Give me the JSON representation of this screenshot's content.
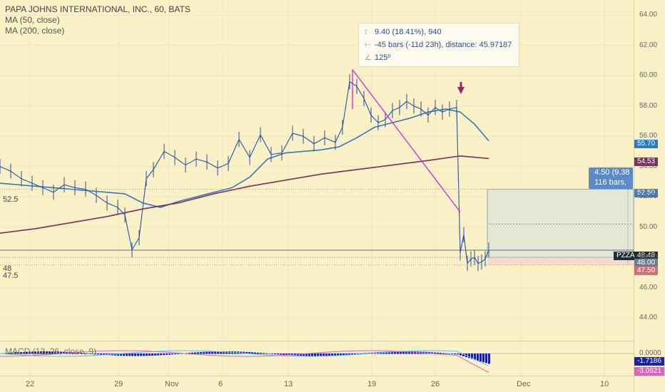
{
  "header": {
    "title": "PAPA JOHNS INTERNATIONAL, INC., 60, BATS",
    "ma50": "MA (50, close)",
    "ma200": "MA (200, close)",
    "macd": "MACD (12, 26, close, 9)"
  },
  "tooltip": {
    "price_range": "9.40 (18.41%), 940",
    "bars": "-45 bars (-11d 23h), distance: 45.97187",
    "angle": "125º"
  },
  "position_label": {
    "line1": "4.50 (9.38",
    "line2": "116 bars,"
  },
  "price_tags": {
    "ma50": "55.70",
    "ma200": "54.53",
    "target": "52.50",
    "symbol": "PZZA",
    "last": "48.48",
    "entry": "48.00",
    "stop": "47.50",
    "macd_zero": "0.0000",
    "macd_line": "-1.7186",
    "macd_hist": "-3.0621"
  },
  "left_labels": [
    "52.5",
    "48",
    "47.5"
  ],
  "colors": {
    "background": "#fbf1c7",
    "ma50": "#2e7bbf",
    "ma200": "#7b2d5c",
    "trendline": "#d426d4",
    "position_box": "#dfe5d6",
    "macd_hist": "#1a22a6",
    "arrow": "#9a2464"
  },
  "chart_data": {
    "type": "line",
    "title": "PAPA JOHNS INTERNATIONAL, INC., 60, BATS",
    "x_ticks": [
      "22",
      "29",
      "Nov",
      "6",
      "13",
      "19",
      "26",
      "Dec",
      "10"
    ],
    "y_ticks": [
      "44.00",
      "46.00",
      "48.00",
      "50.00",
      "52.00",
      "54.00",
      "56.00",
      "58.00",
      "60.00",
      "62.00",
      "64.00"
    ],
    "ylim": [
      42.5,
      65
    ],
    "macd_ticks": [
      "0.0000",
      "-1.7186",
      "-3.0621"
    ],
    "grid": true,
    "series": [
      {
        "name": "MA (50, close)",
        "x": [
          0,
          25,
          50,
          75,
          100,
          125,
          150,
          175,
          200,
          225,
          250,
          275,
          300,
          325,
          350,
          375,
          400,
          425,
          450,
          475,
          500,
          525,
          550,
          575,
          600,
          625,
          645,
          665,
          685
        ],
        "values": [
          52.9,
          52.8,
          52.7,
          52.6,
          52.5,
          52.4,
          52.3,
          52.2,
          51.6,
          51.3,
          51.7,
          52.0,
          52.3,
          52.6,
          53.3,
          54.5,
          54.9,
          55.0,
          55.1,
          55.3,
          55.9,
          56.6,
          56.9,
          57.2,
          57.6,
          57.8,
          57.6,
          56.8,
          55.7
        ]
      },
      {
        "name": "MA (200, close)",
        "x": [
          0,
          50,
          100,
          150,
          200,
          250,
          300,
          350,
          400,
          450,
          500,
          550,
          600,
          645,
          685
        ],
        "values": [
          49.6,
          49.9,
          50.3,
          50.7,
          51.2,
          51.6,
          52.2,
          52.7,
          53.1,
          53.5,
          53.8,
          54.1,
          54.4,
          54.7,
          54.53
        ]
      },
      {
        "name": "Close",
        "x": [
          0,
          15,
          30,
          45,
          60,
          75,
          90,
          105,
          120,
          135,
          150,
          165,
          175,
          185,
          195,
          205,
          215,
          230,
          245,
          260,
          275,
          290,
          305,
          320,
          335,
          350,
          365,
          380,
          395,
          410,
          425,
          440,
          455,
          470,
          480,
          490,
          500,
          510,
          520,
          530,
          540,
          550,
          560,
          570,
          580,
          590,
          600,
          610,
          620,
          630,
          640,
          645,
          650,
          655,
          660,
          665,
          670,
          675,
          680,
          685
        ],
        "values": [
          54.0,
          53.7,
          53.2,
          52.9,
          52.6,
          52.3,
          52.8,
          52.6,
          52.5,
          52.1,
          51.6,
          51.3,
          50.8,
          48.5,
          49.3,
          53.2,
          53.8,
          55.0,
          54.6,
          54.1,
          54.5,
          54.3,
          53.9,
          54.2,
          55.8,
          54.6,
          56.1,
          54.8,
          54.9,
          56.2,
          56.0,
          55.5,
          55.9,
          55.6,
          56.6,
          59.6,
          59.3,
          58.5,
          57.4,
          56.9,
          57.1,
          57.7,
          57.9,
          58.3,
          58.0,
          57.8,
          57.4,
          57.9,
          57.6,
          57.8,
          57.9,
          48.3,
          49.5,
          47.6,
          47.9,
          48.0,
          47.6,
          47.7,
          47.9,
          48.48
        ]
      }
    ]
  }
}
